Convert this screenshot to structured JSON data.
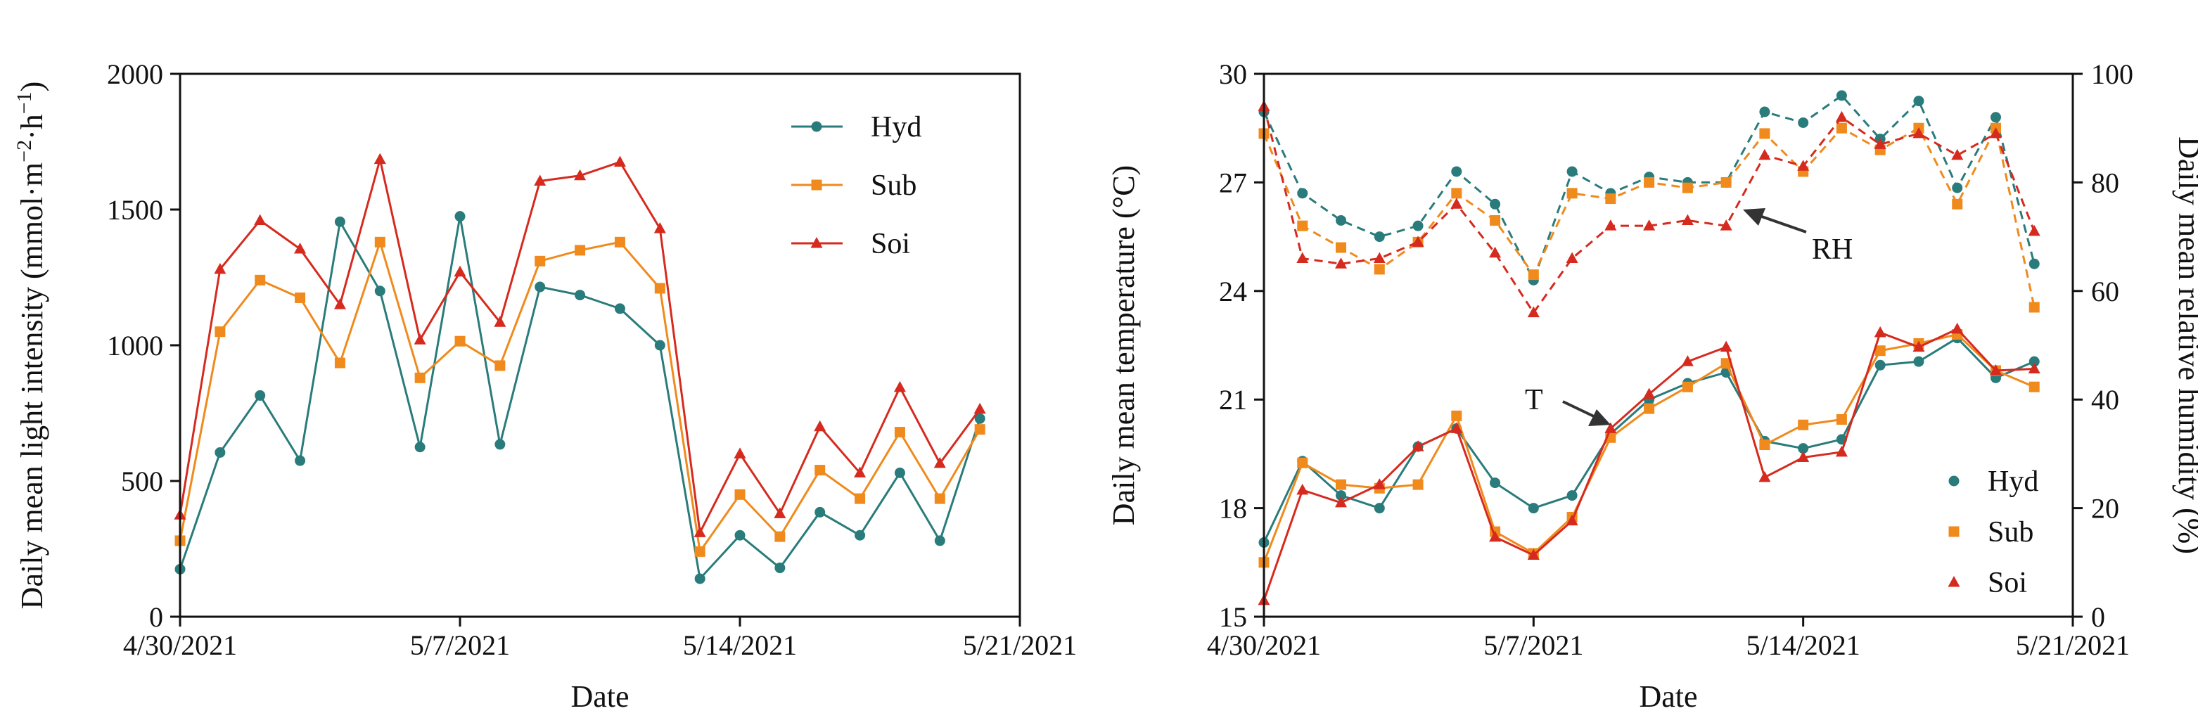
{
  "colors": {
    "hyd": "#2a7b7b",
    "sub": "#f08a1c",
    "soi": "#d62a1e",
    "arrow": "#333333"
  },
  "chart_data": [
    {
      "type": "line",
      "title": "",
      "xlabel": "Date",
      "ylabel": "Daily mean light intensity (mmol·m⁻²·h⁻¹)",
      "ylabel_main": "Daily mean light intensity (mmol·m",
      "ylabel_sup1": "−2",
      "ylabel_mid": "·h",
      "ylabel_sup2": "−1",
      "ylabel_end": ")",
      "xlim": [
        0,
        21
      ],
      "ylim": [
        0,
        2000
      ],
      "xticks": [
        {
          "pos": 0,
          "label": "4/30/2021"
        },
        {
          "pos": 7,
          "label": "5/7/2021"
        },
        {
          "pos": 14,
          "label": "5/14/2021"
        },
        {
          "pos": 21,
          "label": "5/21/2021"
        }
      ],
      "yticks": [
        0,
        500,
        1000,
        1500,
        2000
      ],
      "legend_position": "top-right",
      "x": [
        0,
        1,
        2,
        3,
        4,
        5,
        6,
        7,
        8,
        9,
        10,
        11,
        12,
        13,
        14,
        15,
        16,
        17,
        18,
        19,
        20
      ],
      "series": [
        {
          "name": "Hyd",
          "key": "hyd",
          "marker": "circle",
          "values": [
            175,
            605,
            815,
            575,
            1455,
            1200,
            625,
            1475,
            635,
            1215,
            1185,
            1135,
            1000,
            140,
            300,
            180,
            385,
            300,
            530,
            280,
            730
          ]
        },
        {
          "name": "Sub",
          "key": "sub",
          "marker": "square",
          "values": [
            280,
            1050,
            1240,
            1175,
            935,
            1380,
            880,
            1015,
            925,
            1310,
            1350,
            1380,
            1210,
            240,
            450,
            295,
            540,
            435,
            680,
            435,
            690
          ]
        },
        {
          "name": "Soi",
          "key": "soi",
          "marker": "triangle",
          "values": [
            375,
            1280,
            1460,
            1355,
            1150,
            1685,
            1020,
            1270,
            1085,
            1605,
            1625,
            1675,
            1430,
            310,
            600,
            380,
            700,
            530,
            845,
            565,
            765
          ]
        }
      ]
    },
    {
      "type": "line",
      "title": "",
      "xlabel": "Date",
      "ylabel": "Daily mean temperature (°C)",
      "ylabel_right": "Daily mean relative humidity (%)",
      "xlim": [
        0,
        21
      ],
      "ylim": [
        15,
        30
      ],
      "ylim_right": [
        0,
        100
      ],
      "xticks": [
        {
          "pos": 0,
          "label": "4/30/2021"
        },
        {
          "pos": 7,
          "label": "5/7/2021"
        },
        {
          "pos": 14,
          "label": "5/14/2021"
        },
        {
          "pos": 21,
          "label": "5/21/2021"
        }
      ],
      "yticks": [
        15,
        18,
        21,
        24,
        27,
        30
      ],
      "yticks_right": [
        0,
        20,
        40,
        60,
        80,
        100
      ],
      "legend_position": "bottom-right",
      "annotations": [
        {
          "text": "RH"
        },
        {
          "text": "T"
        }
      ],
      "x": [
        0,
        1,
        2,
        3,
        4,
        5,
        6,
        7,
        8,
        9,
        10,
        11,
        12,
        13,
        14,
        15,
        16,
        17,
        18,
        19,
        20
      ],
      "series": [
        {
          "name": "Hyd",
          "key": "hyd",
          "marker": "circle",
          "axis": "left",
          "dashed": false,
          "values": [
            17.05,
            19.3,
            18.35,
            18.0,
            19.7,
            20.2,
            18.7,
            18.0,
            18.35,
            20.05,
            21.0,
            21.45,
            21.75,
            19.85,
            19.65,
            19.9,
            21.95,
            22.05,
            22.7,
            21.6,
            22.05
          ]
        },
        {
          "name": "Sub",
          "key": "sub",
          "marker": "square",
          "axis": "left",
          "dashed": false,
          "values": [
            16.5,
            19.25,
            18.65,
            18.55,
            18.65,
            20.55,
            17.35,
            16.75,
            17.75,
            19.95,
            20.75,
            21.35,
            22.0,
            19.75,
            20.3,
            20.45,
            22.35,
            22.55,
            22.8,
            21.8,
            21.35
          ]
        },
        {
          "name": "Soi",
          "key": "soi",
          "marker": "triangle",
          "axis": "left",
          "dashed": false,
          "values": [
            15.45,
            18.5,
            18.15,
            18.65,
            19.7,
            20.2,
            17.2,
            16.7,
            17.65,
            20.2,
            21.15,
            22.05,
            22.45,
            18.85,
            19.4,
            19.55,
            22.85,
            22.45,
            22.95,
            21.8,
            21.85
          ]
        },
        {
          "name": "Hyd",
          "key": "hyd",
          "marker": "circle",
          "axis": "right",
          "dashed": true,
          "values": [
            93,
            78,
            73,
            70,
            72,
            82,
            76,
            62,
            82,
            78,
            81,
            80,
            80,
            93,
            91,
            96,
            88,
            95,
            79,
            92,
            65
          ]
        },
        {
          "name": "Sub",
          "key": "sub",
          "marker": "square",
          "axis": "right",
          "dashed": true,
          "values": [
            89,
            72,
            68,
            64,
            69,
            78,
            73,
            63,
            78,
            77,
            80,
            79,
            80,
            89,
            82,
            90,
            86,
            90,
            76,
            90,
            57
          ]
        },
        {
          "name": "Soi",
          "key": "soi",
          "marker": "triangle",
          "axis": "right",
          "dashed": true,
          "values": [
            94,
            66,
            65,
            66,
            69,
            76,
            67,
            56,
            66,
            72,
            72,
            73,
            72,
            85,
            83,
            92,
            87,
            89,
            85,
            89,
            71
          ]
        }
      ]
    }
  ]
}
